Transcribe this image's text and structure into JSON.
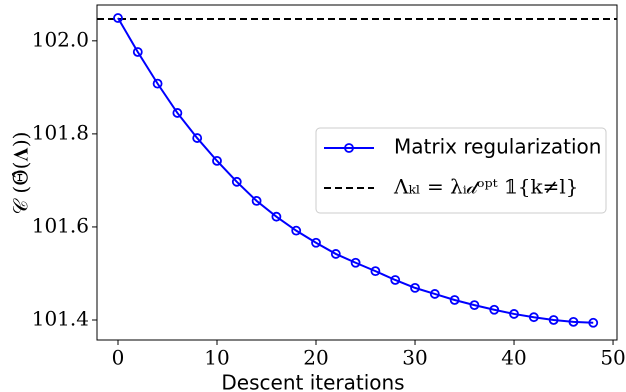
{
  "chart_data": {
    "type": "line",
    "xlabel": "Descent iterations",
    "ylabel": "𝒞 (Θ̂(𝚲))",
    "x": [
      0,
      2,
      4,
      6,
      8,
      10,
      12,
      14,
      16,
      18,
      20,
      22,
      24,
      26,
      28,
      30,
      32,
      34,
      36,
      38,
      40,
      42,
      44,
      46,
      48
    ],
    "series": [
      {
        "name": "Matrix regularization",
        "color": "#0000ff",
        "values": [
          102.049,
          101.976,
          101.908,
          101.845,
          101.791,
          101.742,
          101.697,
          101.656,
          101.622,
          101.592,
          101.566,
          101.542,
          101.523,
          101.505,
          101.486,
          101.469,
          101.456,
          101.443,
          101.432,
          101.422,
          101.413,
          101.406,
          101.4,
          101.396,
          101.394
        ]
      }
    ],
    "hline": {
      "name": "Λₖₗ = λᵢ𝒹ᵒᵖᵗ 𝟙{k≠l}",
      "value": 102.047,
      "color": "#000000"
    },
    "xlim": [
      -2.12,
      50.4
    ],
    "ylim": [
      101.357,
      102.077
    ],
    "xticks": [
      0,
      10,
      20,
      30,
      40,
      50
    ],
    "yticks": [
      101.4,
      101.6,
      101.8,
      {
        "value": 102,
        "label": "102.0"
      }
    ],
    "legend": "center right"
  }
}
